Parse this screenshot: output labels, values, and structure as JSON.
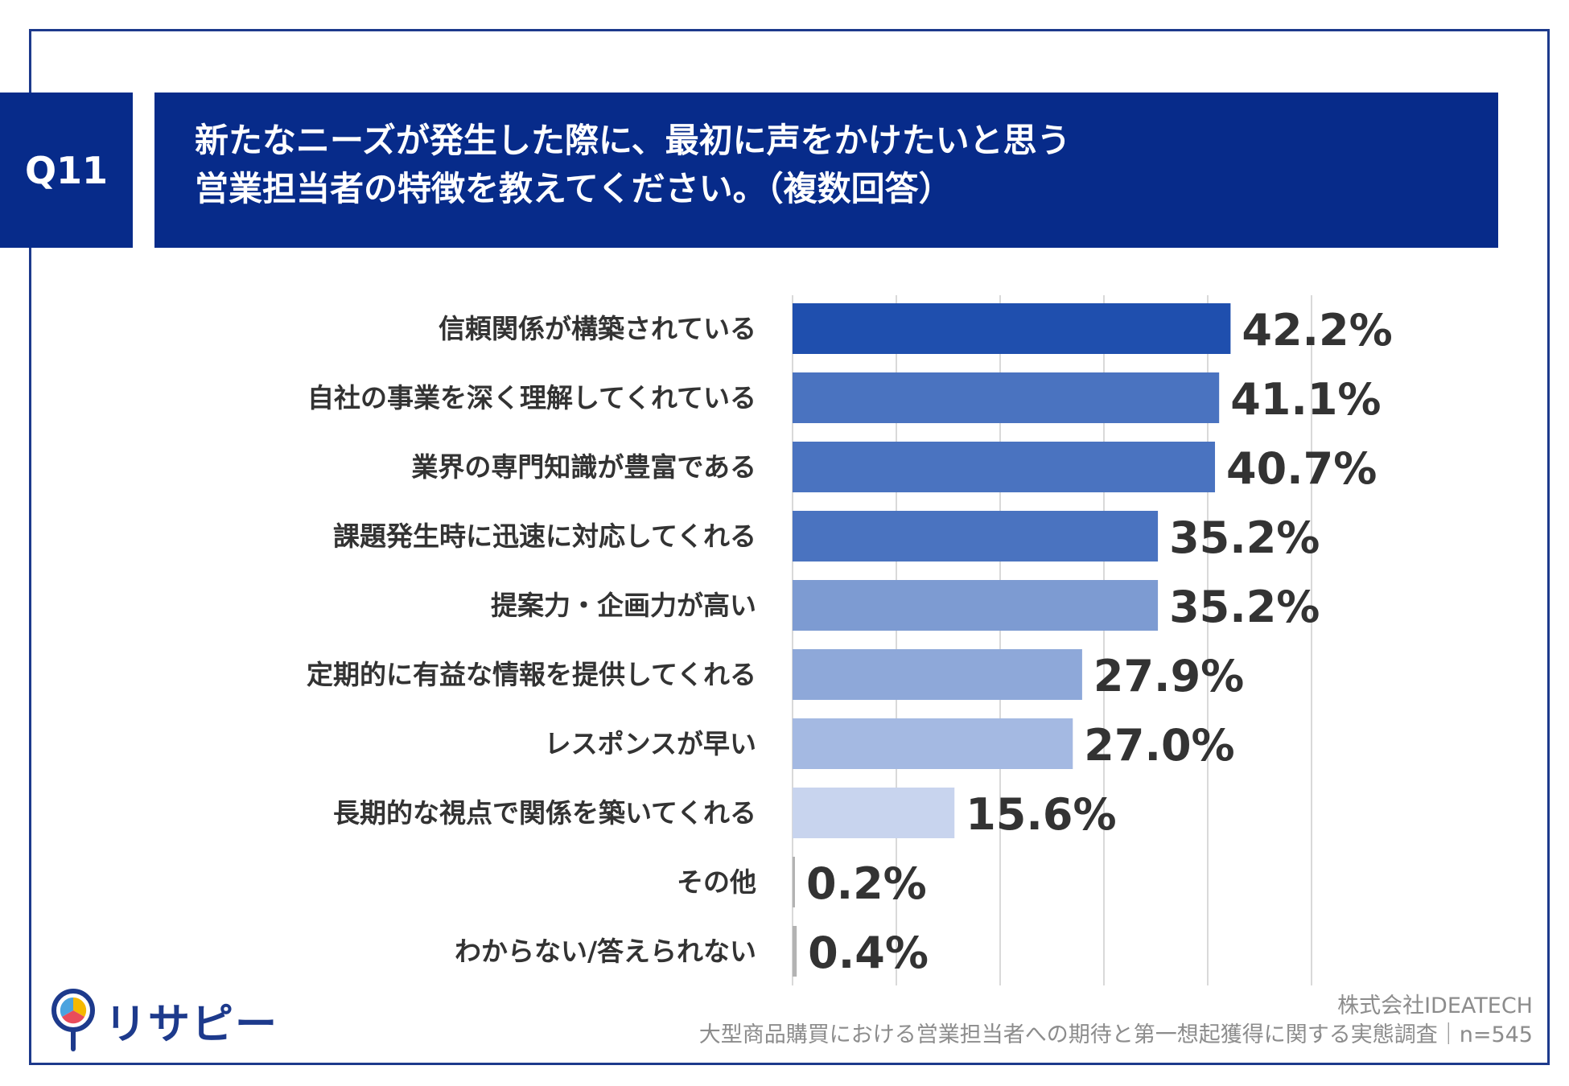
{
  "question": {
    "badge": "Q11",
    "title_line1": "新たなニーズが発生した際に、最初に声をかけたいと思う",
    "title_line2": "営業担当者の特徴を教えてください。（複数回答）"
  },
  "chart_data": {
    "type": "bar",
    "orientation": "horizontal",
    "categories": [
      "信頼関係が構築されている",
      "自社の事業を深く理解してくれている",
      "業界の専門知識が豊富である",
      "課題発生時に迅速に対応してくれる",
      "提案力・企画力が高い",
      "定期的に有益な情報を提供してくれる",
      "レスポンスが早い",
      "長期的な視点で関係を築いてくれる",
      "その他",
      "わからない/答えられない"
    ],
    "values": [
      42.2,
      41.1,
      40.7,
      35.2,
      35.2,
      27.9,
      27.0,
      15.6,
      0.2,
      0.4
    ],
    "value_labels": [
      "42.2%",
      "41.1%",
      "40.7%",
      "35.2%",
      "35.2%",
      "27.9%",
      "27.0%",
      "15.6%",
      "0.2%",
      "0.4%"
    ],
    "bar_colors": [
      "#1f4fae",
      "#4a73c0",
      "#4a73c0",
      "#4a73c0",
      "#7d9bd2",
      "#8ea8d9",
      "#a4b9e2",
      "#c8d4ee",
      "#b3b3b3",
      "#b3b3b3"
    ],
    "xlim": [
      0,
      50
    ],
    "grid": true
  },
  "footer": {
    "company": "株式会社IDEATECH",
    "survey": "大型商品購買における営業担当者への期待と第一想起獲得に関する実態調査｜n=545"
  },
  "logo": {
    "text": "リサピー"
  }
}
